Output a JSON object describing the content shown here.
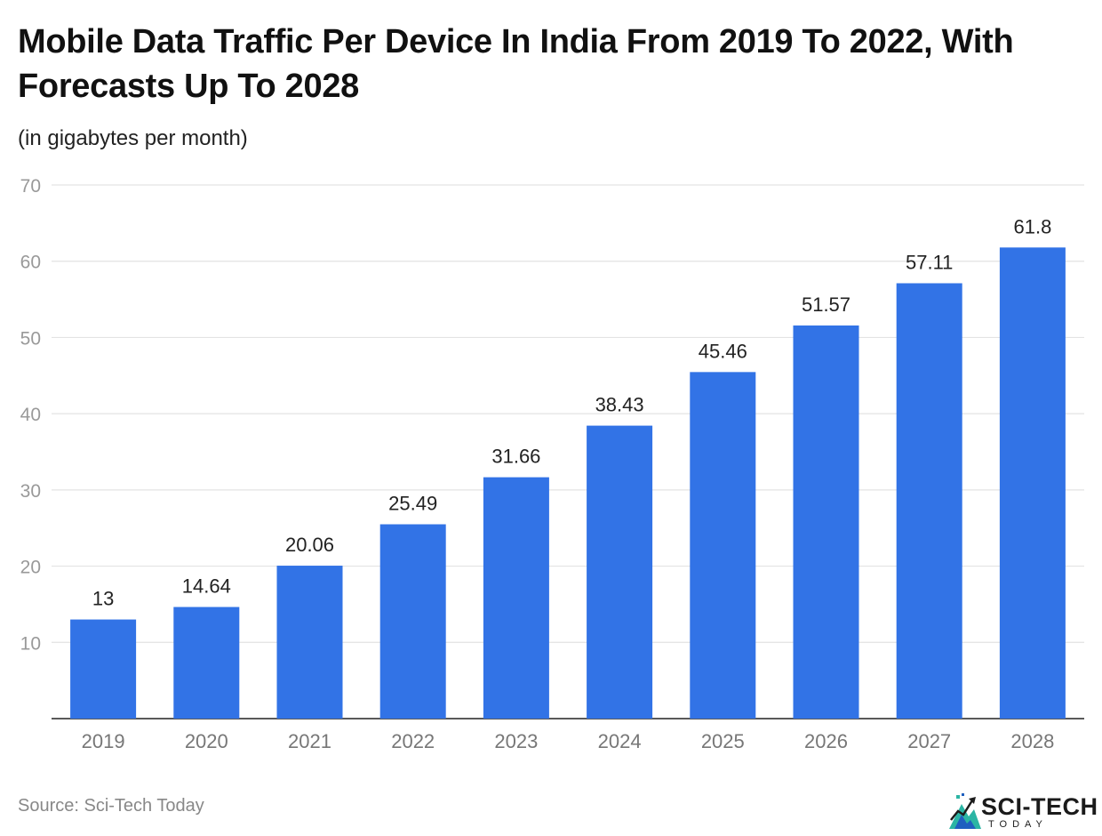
{
  "title": "Mobile Data Traffic Per Device In India From 2019 To 2022, With Forecasts Up To 2028",
  "subtitle": "(in gigabytes per month)",
  "source": "Source: Sci-Tech Today",
  "logo": {
    "name": "SCI-TECH",
    "tagline": "TODAY",
    "icon": "mountain-chart-logo-icon"
  },
  "colors": {
    "bar": "#3273e6",
    "grid": "#e3e3e3",
    "axis": "#222222",
    "tick": "#999999",
    "label": "#222222"
  },
  "chart_data": {
    "type": "bar",
    "title": "Mobile Data Traffic Per Device In India From 2019 To 2022, With Forecasts Up To 2028",
    "ylabel": "(in gigabytes per month)",
    "xlabel": "",
    "categories": [
      "2019",
      "2020",
      "2021",
      "2022",
      "2023",
      "2024",
      "2025",
      "2026",
      "2027",
      "2028"
    ],
    "values": [
      13,
      14.64,
      20.06,
      25.49,
      31.66,
      38.43,
      45.46,
      51.57,
      57.11,
      61.8
    ],
    "value_labels": [
      "13",
      "14.64",
      "20.06",
      "25.49",
      "31.66",
      "38.43",
      "45.46",
      "51.57",
      "57.11",
      "61.8"
    ],
    "ylim": [
      0,
      70
    ],
    "yticks": [
      10,
      20,
      30,
      40,
      50,
      60,
      70
    ],
    "grid": true,
    "legend": "none"
  }
}
